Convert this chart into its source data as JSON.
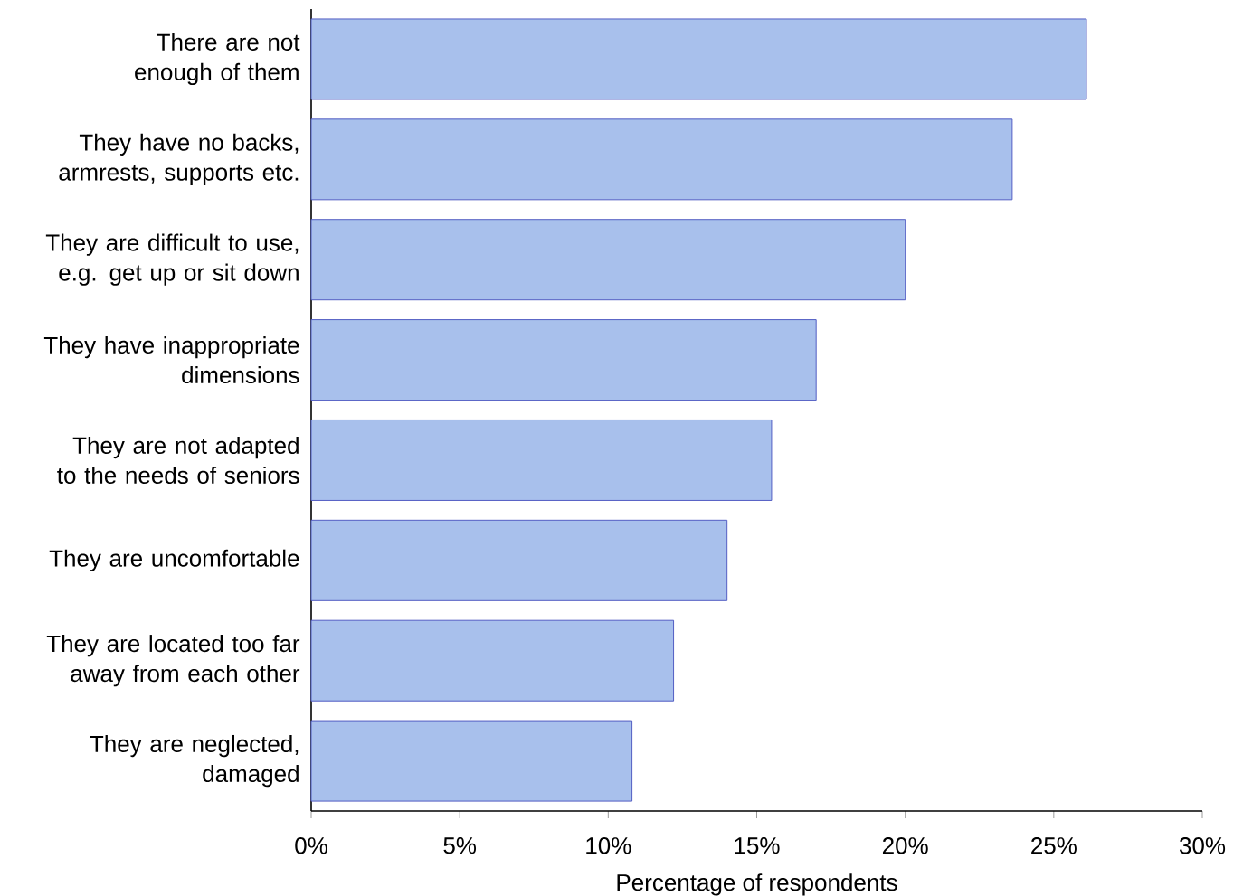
{
  "chart_data": {
    "type": "bar",
    "orientation": "horizontal",
    "xlabel": "Percentage of respondents",
    "categories": [
      "There are not enough of them",
      "They have no backs, armrests, supports etc.",
      "They are difficult to use, e.g. get up or sit down",
      "They have inappropriate dimensions",
      "They are not adapted to the needs of seniors",
      "They are uncomfortable",
      "They are located too far away from each other",
      "They are neglected, damaged"
    ],
    "values": [
      26.1,
      23.6,
      20.0,
      17.0,
      15.5,
      14.0,
      12.2,
      10.8
    ],
    "color": "#a8c0ec",
    "xlim": [
      0,
      30
    ],
    "xticks": [
      {
        "value": 0,
        "label": "0%"
      },
      {
        "value": 5,
        "label": "5%"
      },
      {
        "value": 10,
        "label": "10%"
      },
      {
        "value": 15,
        "label": "15%"
      },
      {
        "value": 20,
        "label": "20%"
      },
      {
        "value": 25,
        "label": "25%"
      },
      {
        "value": 30,
        "label": "30%"
      }
    ],
    "grid": false
  }
}
